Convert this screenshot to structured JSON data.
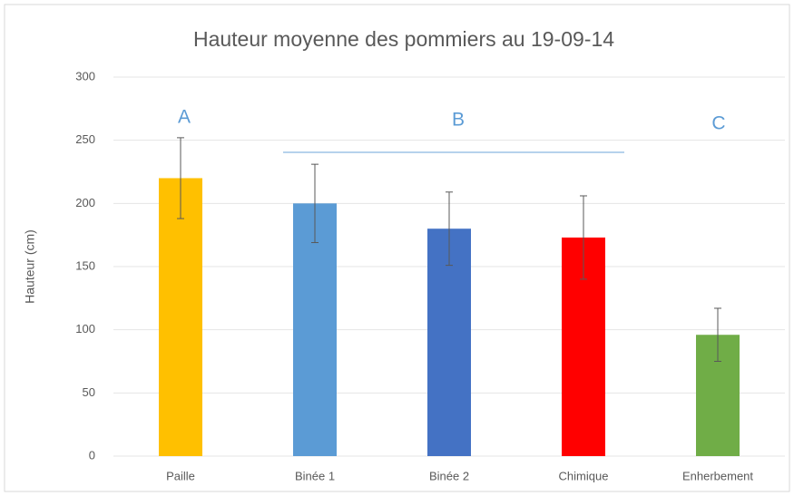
{
  "chart_data": {
    "type": "bar",
    "title": "Hauteur moyenne des pommiers au 19-09-14",
    "y_label": "Hauteur (cm)",
    "categories": [
      "Paille",
      "Binée 1",
      "Binée 2",
      "Chimique",
      "Enherbement"
    ],
    "values": [
      220,
      200,
      180,
      173,
      96
    ],
    "errors": [
      32,
      31,
      29,
      33,
      21
    ],
    "colors": [
      "#ffc000",
      "#5b9bd5",
      "#4472c4",
      "#ff0000",
      "#70ad47"
    ],
    "annotations": [
      "A",
      "B",
      "C"
    ],
    "ylim": [
      0,
      300
    ],
    "yticks": [
      0,
      50,
      100,
      150,
      200,
      250,
      300
    ],
    "grid": true
  }
}
